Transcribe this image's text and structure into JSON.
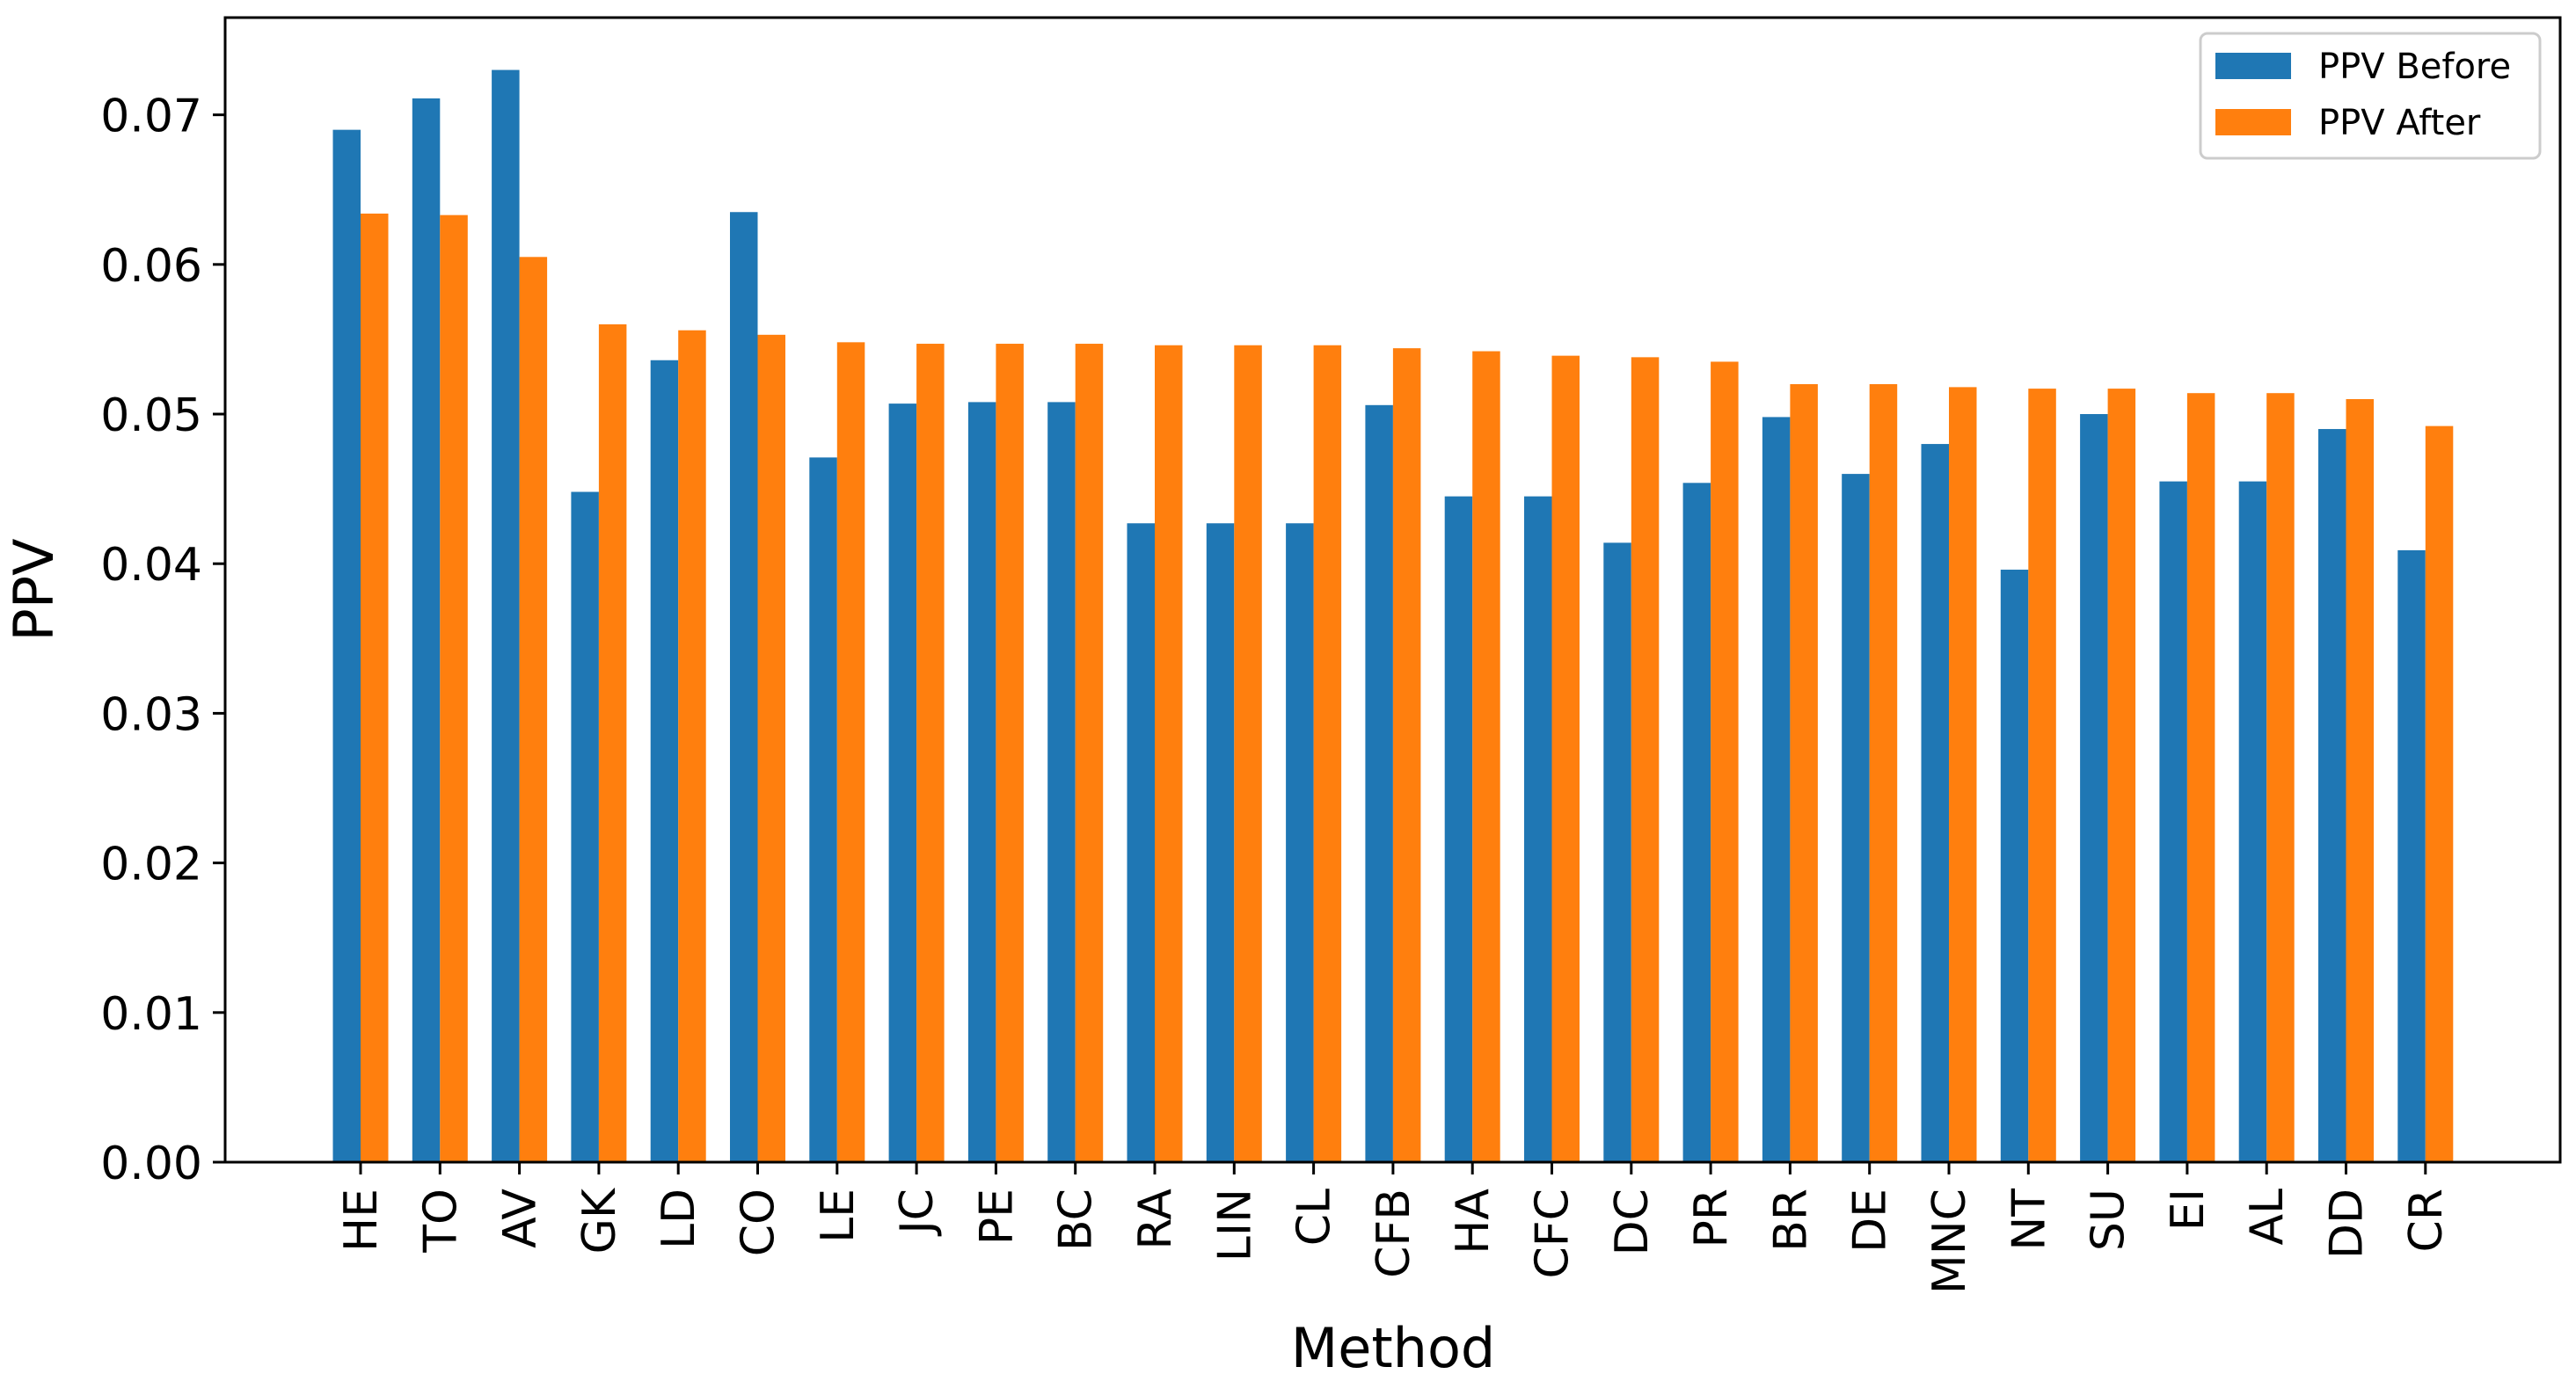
{
  "chart_data": {
    "type": "bar",
    "title": "",
    "xlabel": "Method",
    "ylabel": "PPV",
    "ylim": [
      0,
      0.0765
    ],
    "yticks": [
      "0.00",
      "0.01",
      "0.02",
      "0.03",
      "0.04",
      "0.05",
      "0.06",
      "0.07"
    ],
    "categories": [
      "HE",
      "TO",
      "AV",
      "GK",
      "LD",
      "CO",
      "LE",
      "JC",
      "PE",
      "BC",
      "RA",
      "LIN",
      "CL",
      "CFB",
      "HA",
      "CFC",
      "DC",
      "PR",
      "BR",
      "DE",
      "MNC",
      "NT",
      "SU",
      "EI",
      "AL",
      "DD",
      "CR"
    ],
    "series": [
      {
        "name": "PPV Before",
        "color": "#1f77b4",
        "values": [
          0.069,
          0.0711,
          0.073,
          0.0448,
          0.0536,
          0.0635,
          0.0471,
          0.0507,
          0.0508,
          0.0508,
          0.0427,
          0.0427,
          0.0427,
          0.0506,
          0.0445,
          0.0445,
          0.0414,
          0.0454,
          0.0498,
          0.046,
          0.048,
          0.0396,
          0.05,
          0.0455,
          0.0455,
          0.049,
          0.0409
        ]
      },
      {
        "name": "PPV After",
        "color": "#ff7f0e",
        "values": [
          0.0634,
          0.0633,
          0.0605,
          0.056,
          0.0556,
          0.0553,
          0.0548,
          0.0547,
          0.0547,
          0.0547,
          0.0546,
          0.0546,
          0.0546,
          0.0544,
          0.0542,
          0.0539,
          0.0538,
          0.0535,
          0.052,
          0.052,
          0.0518,
          0.0517,
          0.0517,
          0.0514,
          0.0514,
          0.051,
          0.0492
        ]
      }
    ],
    "legend": "top-right",
    "grid": false
  }
}
